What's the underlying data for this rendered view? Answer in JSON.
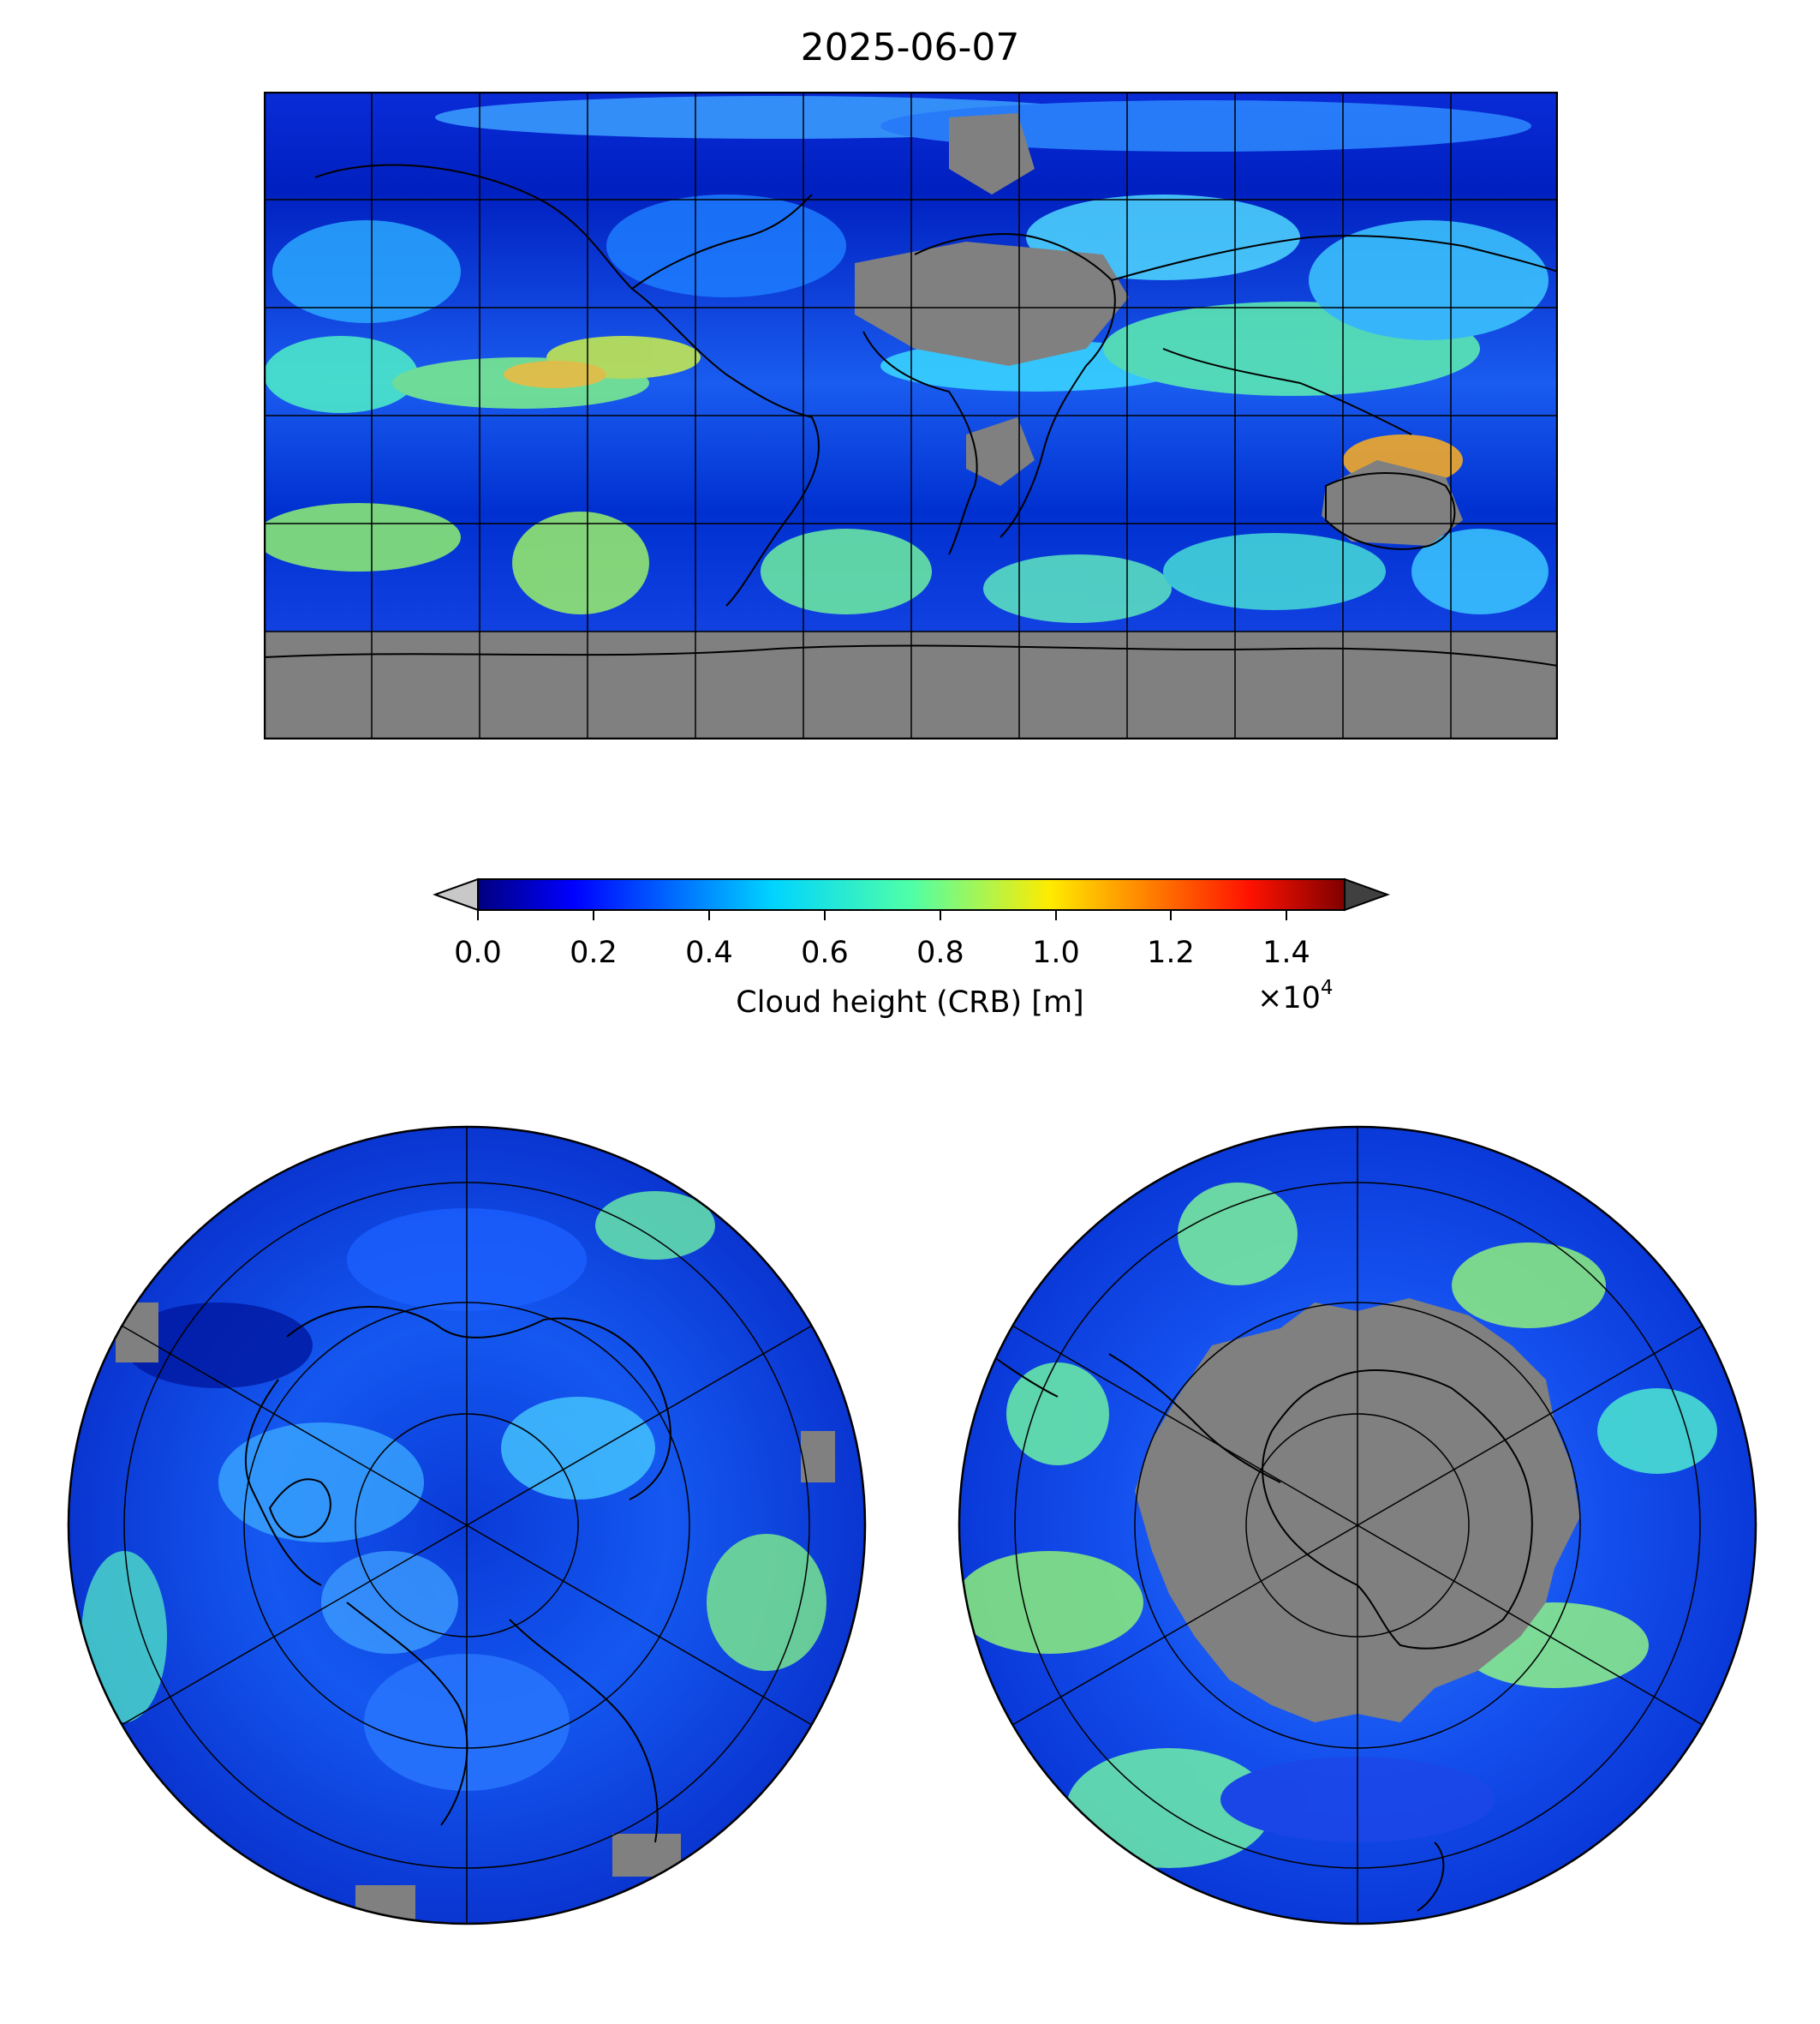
{
  "title": "2025-06-07",
  "colorbar": {
    "label": "Cloud height (CRB) [m]",
    "ticks": [
      "0.0",
      "0.2",
      "0.4",
      "0.6",
      "0.8",
      "1.0",
      "1.2",
      "1.4"
    ],
    "tick_values": [
      0.0,
      0.2,
      0.4,
      0.6,
      0.8,
      1.0,
      1.2,
      1.4
    ],
    "range": [
      0.0,
      1.5
    ],
    "multiplier": "×10",
    "multiplier_exponent": "4",
    "colormap": "jet",
    "under_color": "#c8c8c8",
    "over_color": "#404040",
    "extend": "both"
  },
  "maps": {
    "world_projection": "PlateCarree",
    "north_projection": "NorthPolarStereo",
    "south_projection": "SouthPolarStereo",
    "no_data_color": "#808080",
    "gridlines": true
  }
}
